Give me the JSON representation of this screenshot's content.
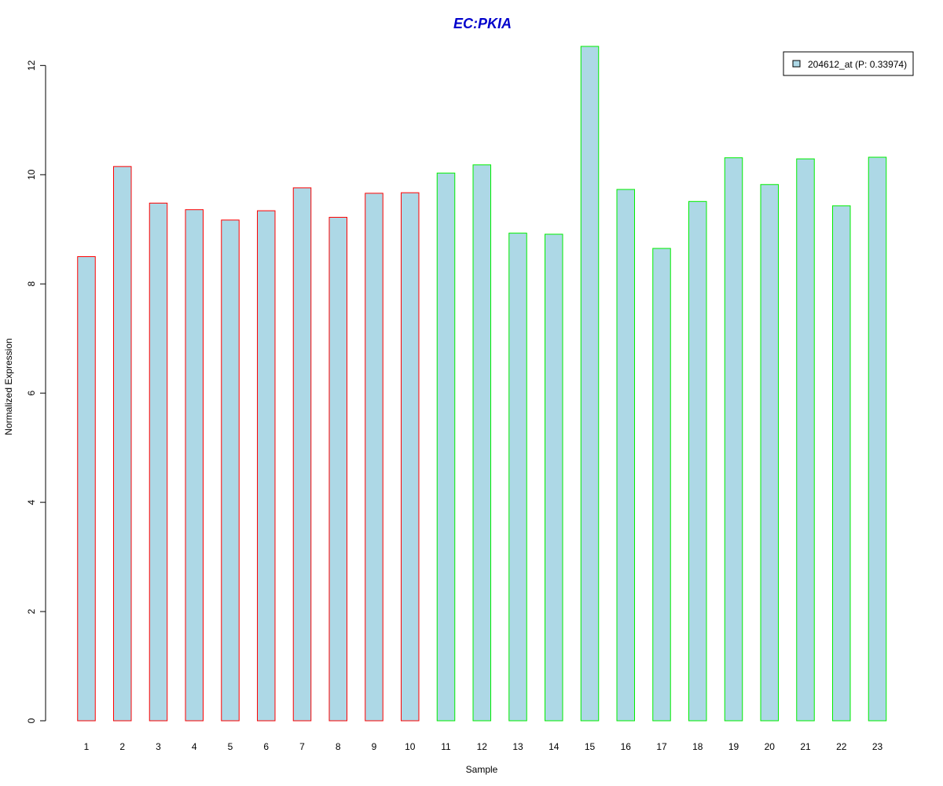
{
  "chart_data": {
    "type": "bar",
    "title": "EC:PKIA",
    "xlabel": "Sample",
    "ylabel": "Normalized Expression",
    "categories": [
      "1",
      "2",
      "3",
      "4",
      "5",
      "6",
      "7",
      "8",
      "9",
      "10",
      "11",
      "12",
      "13",
      "14",
      "15",
      "16",
      "17",
      "18",
      "19",
      "20",
      "21",
      "22",
      "23"
    ],
    "series": [
      {
        "name": "204612_at (P: 0.33974)",
        "values": [
          8.5,
          10.15,
          9.48,
          9.36,
          9.17,
          9.34,
          9.76,
          9.22,
          9.66,
          9.67,
          10.03,
          10.18,
          8.93,
          8.91,
          12.35,
          9.73,
          8.65,
          9.51,
          10.31,
          9.82,
          10.29,
          9.43,
          10.32
        ]
      }
    ],
    "groups": [
      {
        "samples": [
          1,
          10
        ],
        "border_color": "#ff0000"
      },
      {
        "samples": [
          11,
          23
        ],
        "border_color": "#00ee00"
      }
    ],
    "ylim": [
      0,
      12.35
    ],
    "yticks": [
      0,
      2,
      4,
      6,
      8,
      10,
      12
    ],
    "grid": false,
    "legend_position": "top-right",
    "colors": {
      "bar_fill": "#add8e6",
      "title": "#0000cc",
      "group1_border": "#ff0000",
      "group2_border": "#00ee00"
    }
  }
}
